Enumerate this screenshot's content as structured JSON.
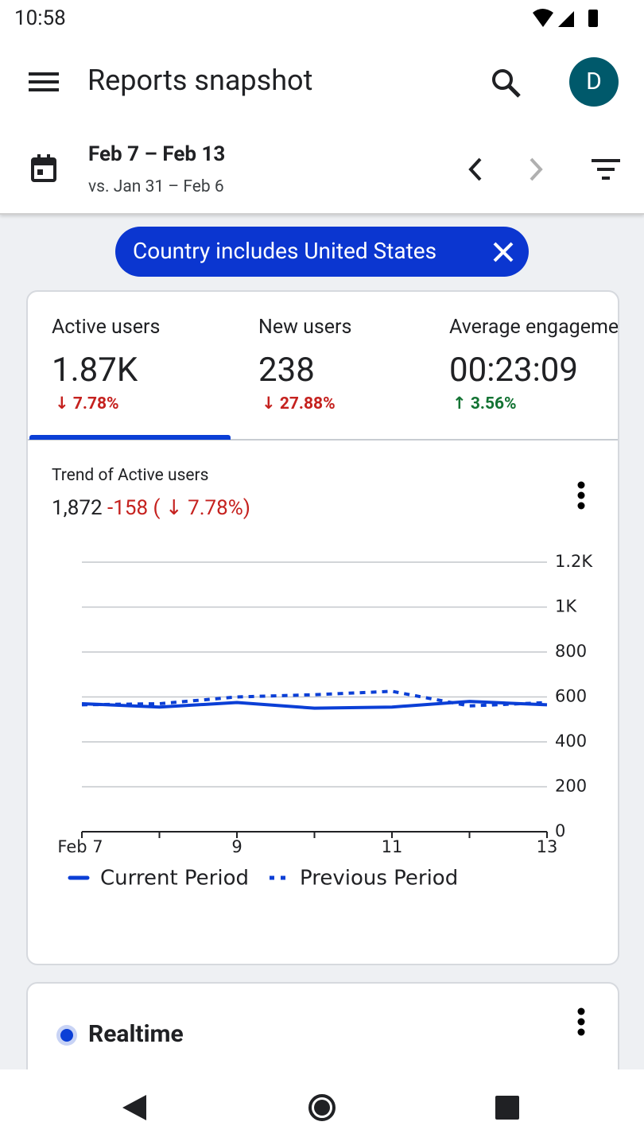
{
  "status_bar": {
    "time": "10:58"
  },
  "app_bar": {
    "title": "Reports snapshot",
    "avatar": "D"
  },
  "date_range": {
    "current": "Feb 7 – Feb 13",
    "comparison": "vs. Jan 31 – Feb 6"
  },
  "filter_chip": {
    "label": "Country includes United States"
  },
  "metrics": [
    {
      "label": "Active users",
      "value": "1.87K",
      "change": "↓ 7.78%",
      "direction": "down"
    },
    {
      "label": "New users",
      "value": "238",
      "change": "↓ 27.88%",
      "direction": "down"
    },
    {
      "label": "Average engagement time",
      "value": "00:23:09",
      "change": "↑ 3.56%",
      "direction": "up"
    }
  ],
  "trend": {
    "title": "Trend of Active users",
    "total": "1,872",
    "delta": "-158 ( ↓ 7.78%)"
  },
  "chart_data": {
    "type": "line",
    "categories": [
      "Feb 7",
      null,
      "9",
      null,
      "11",
      null,
      "13"
    ],
    "series": [
      {
        "name": "Current Period",
        "color": "#0b3fd6",
        "line_style": "solid",
        "values": [
          570,
          555,
          575,
          550,
          555,
          580,
          565
        ]
      },
      {
        "name": "Previous Period",
        "color": "#0b3fd6",
        "line_style": "dashed",
        "values": [
          565,
          570,
          600,
          610,
          625,
          560,
          575
        ]
      }
    ],
    "ylim": [
      0,
      1200
    ],
    "yticks": [
      0,
      200,
      400,
      600,
      800,
      {
        "value": 1000,
        "label": "1K"
      },
      {
        "value": 1200,
        "label": "1.2K"
      }
    ],
    "grid": true,
    "y_axis_side": "right",
    "legend": "bottom"
  },
  "realtime": {
    "title": "Realtime"
  }
}
